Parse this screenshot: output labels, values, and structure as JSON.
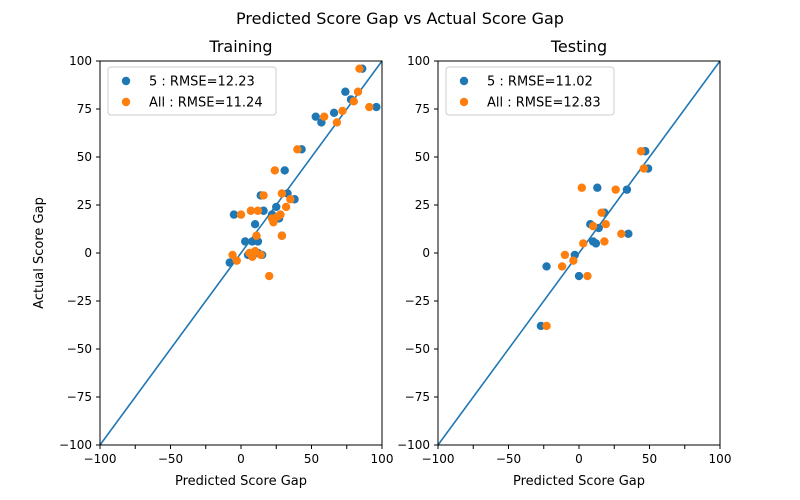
{
  "figure": {
    "suptitle": "Predicted Score Gap vs Actual Score Gap"
  },
  "colors": {
    "series1": "#1f77b4",
    "series2": "#ff7f0e",
    "diagonal": "#1f77b4",
    "axes": "#000000"
  },
  "chart_data": [
    {
      "type": "scatter",
      "title": "Training",
      "xlabel": "Predicted  Score Gap",
      "ylabel": "Actual Score Gap",
      "xlim": [
        -100,
        100
      ],
      "ylim": [
        -100,
        100
      ],
      "xticks": [
        -100,
        -75,
        -50,
        -25,
        0,
        25,
        50,
        75,
        100
      ],
      "yticks": [
        -100,
        -75,
        -50,
        -25,
        0,
        25,
        50,
        75,
        100
      ],
      "xtick_labels": [
        "−100",
        "−50",
        "0",
        "50",
        "100"
      ],
      "xtick_label_values": [
        -100,
        -50,
        0,
        50,
        100
      ],
      "ytick_labels": [
        "−100",
        "−75",
        "−50",
        "−25",
        "0",
        "25",
        "50",
        "75",
        "100"
      ],
      "reference_line": "y = x",
      "legend_position": "upper-left",
      "series": [
        {
          "name": "5 : RMSE=12.23",
          "points": [
            [
              -8,
              -5
            ],
            [
              -5,
              20
            ],
            [
              3,
              6
            ],
            [
              5,
              -1
            ],
            [
              8,
              6
            ],
            [
              10,
              15
            ],
            [
              12,
              6
            ],
            [
              12,
              0
            ],
            [
              14,
              30
            ],
            [
              15,
              -1
            ],
            [
              16,
              22
            ],
            [
              22,
              20
            ],
            [
              25,
              24
            ],
            [
              27,
              18
            ],
            [
              29,
              9
            ],
            [
              31,
              43
            ],
            [
              33,
              31
            ],
            [
              38,
              28
            ],
            [
              43,
              54
            ],
            [
              53,
              71
            ],
            [
              57,
              68
            ],
            [
              66,
              73
            ],
            [
              74,
              84
            ],
            [
              78,
              80
            ],
            [
              86,
              96
            ],
            [
              96,
              76
            ]
          ]
        },
        {
          "name": "All : RMSE=11.24",
          "points": [
            [
              -6,
              -1
            ],
            [
              -3,
              -4
            ],
            [
              0,
              20
            ],
            [
              6,
              0
            ],
            [
              7,
              22
            ],
            [
              8,
              -2
            ],
            [
              10,
              1
            ],
            [
              11,
              9
            ],
            [
              12,
              22
            ],
            [
              14,
              -1
            ],
            [
              16,
              30
            ],
            [
              20,
              -12
            ],
            [
              22,
              18
            ],
            [
              23,
              16
            ],
            [
              24,
              43
            ],
            [
              26,
              19
            ],
            [
              28,
              20
            ],
            [
              29,
              31
            ],
            [
              29,
              9
            ],
            [
              32,
              24
            ],
            [
              35,
              28
            ],
            [
              40,
              54
            ],
            [
              59,
              71
            ],
            [
              68,
              68
            ],
            [
              72,
              74
            ],
            [
              80,
              79
            ],
            [
              83,
              84
            ],
            [
              84,
              96
            ],
            [
              91,
              76
            ]
          ]
        }
      ]
    },
    {
      "type": "scatter",
      "title": "Testing",
      "xlabel": "Predicted  Score Gap",
      "ylabel": "",
      "xlim": [
        -100,
        100
      ],
      "ylim": [
        -100,
        100
      ],
      "xticks": [
        -100,
        -75,
        -50,
        -25,
        0,
        25,
        50,
        75,
        100
      ],
      "yticks": [
        -100,
        -75,
        -50,
        -25,
        0,
        25,
        50,
        75,
        100
      ],
      "xtick_labels": [
        "−100",
        "−50",
        "0",
        "50",
        "100"
      ],
      "xtick_label_values": [
        -100,
        -50,
        0,
        50,
        100
      ],
      "ytick_labels": [
        "−100",
        "−75",
        "−50",
        "−25",
        "0",
        "25",
        "50",
        "75",
        "100"
      ],
      "reference_line": "y = x",
      "legend_position": "upper-left",
      "series": [
        {
          "name": "5 : RMSE=11.02",
          "points": [
            [
              -27,
              -38
            ],
            [
              -23,
              -7
            ],
            [
              -3,
              -1
            ],
            [
              0,
              -12
            ],
            [
              8,
              15
            ],
            [
              10,
              6
            ],
            [
              12,
              5
            ],
            [
              13,
              34
            ],
            [
              14,
              13
            ],
            [
              18,
              21
            ],
            [
              34,
              33
            ],
            [
              35,
              10
            ],
            [
              47,
              53
            ],
            [
              49,
              44
            ]
          ]
        },
        {
          "name": "All : RMSE=12.83",
          "points": [
            [
              -23,
              -38
            ],
            [
              -12,
              -7
            ],
            [
              -10,
              -1
            ],
            [
              -4,
              -4
            ],
            [
              2,
              34
            ],
            [
              3,
              5
            ],
            [
              6,
              -12
            ],
            [
              10,
              14
            ],
            [
              16,
              21
            ],
            [
              18,
              6
            ],
            [
              19,
              15
            ],
            [
              26,
              33
            ],
            [
              30,
              10
            ],
            [
              44,
              53
            ],
            [
              46,
              44
            ]
          ]
        }
      ]
    }
  ]
}
